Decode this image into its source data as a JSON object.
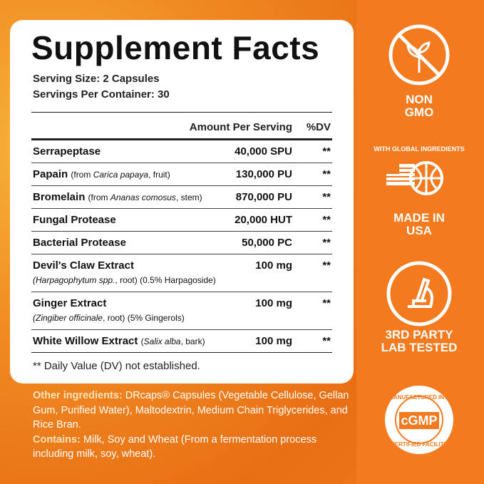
{
  "facts": {
    "title": "Supplement Facts",
    "serving_size": "Serving Size:  2 Capsules",
    "servings_per_container": "Servings Per Container: 30",
    "header": {
      "amount": "Amount Per Serving",
      "dv": "%DV"
    },
    "rows": [
      {
        "name": "Serrapeptase",
        "note": [],
        "amount": "40,000 SPU",
        "dv": "**"
      },
      {
        "name": "Papain",
        "note": [
          {
            "text": "(from ",
            "italic": false
          },
          {
            "text": "Carica papaya",
            "italic": true
          },
          {
            "text": ", fruit)",
            "italic": false
          }
        ],
        "amount": "130,000 PU",
        "dv": "**"
      },
      {
        "name": "Bromelain",
        "note": [
          {
            "text": "(from ",
            "italic": false
          },
          {
            "text": "Ananas comosus",
            "italic": true
          },
          {
            "text": ", stem)",
            "italic": false
          }
        ],
        "amount": "870,000 PU",
        "dv": "**"
      },
      {
        "name": "Fungal Protease",
        "note": [],
        "amount": "20,000 HUT",
        "dv": "**"
      },
      {
        "name": "Bacterial Protease",
        "note": [],
        "amount": "50,000 PC",
        "dv": "**"
      },
      {
        "name": "Devil's Claw Extract",
        "subline": [
          {
            "text": "(Harpagophytum spp.",
            "italic": true
          },
          {
            "text": ", root) (0.5% Harpagoside)",
            "italic": false
          }
        ],
        "amount": "100 mg",
        "dv": "**"
      },
      {
        "name": "Ginger Extract",
        "subline": [
          {
            "text": "(Zingiber officinale",
            "italic": true
          },
          {
            "text": ", root) (5% Gingerols)",
            "italic": false
          }
        ],
        "amount": "100 mg",
        "dv": "**"
      },
      {
        "name": "White Willow Extract",
        "note": [
          {
            "text": "(",
            "italic": false
          },
          {
            "text": "Salix alba",
            "italic": true
          },
          {
            "text": ", bark)",
            "italic": false
          }
        ],
        "amount": "100 mg",
        "dv": "**"
      }
    ],
    "footnote": "** Daily Value (DV) not established."
  },
  "ingredients": {
    "other_label": "Other ingredients:",
    "other_text": " DRcaps® Capsules (Vegetable Cellulose, Gellan Gum, Purified Water), Maltodextrin, Medium Chain Triglycerides, and Rice Bran.",
    "contains_label": "Contains:",
    "contains_text": " Milk, Soy and Wheat (From a fermentation process including milk, soy, wheat)."
  },
  "badges": {
    "non_gmo": "NON GMO",
    "global_ingredients": "WITH GLOBAL INGREDIENTS",
    "made_in_usa": "MADE IN USA",
    "lab_tested": "3RD PARTY LAB TESTED",
    "cgmp_top": "MANUFACTURED IN A",
    "cgmp_bottom": "CERTIFIED FACILITY",
    "cgmp": "cGMP"
  }
}
